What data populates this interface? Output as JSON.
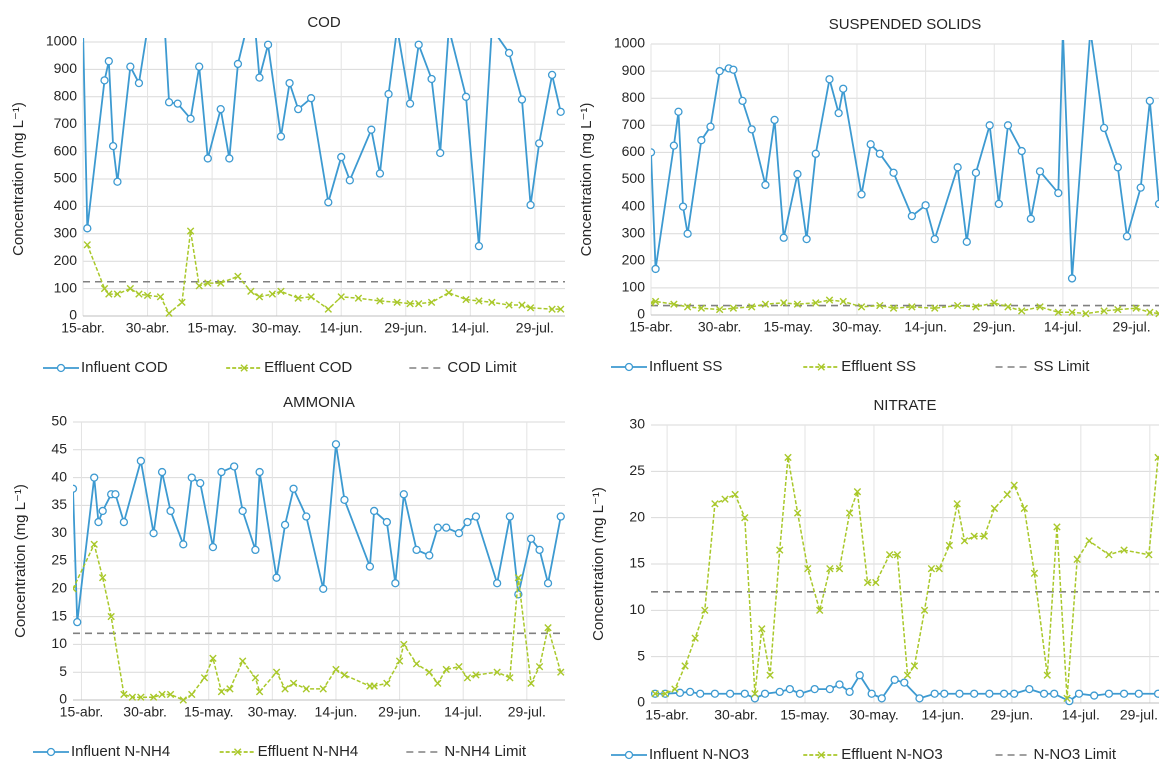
{
  "chart_data": [
    {
      "type": "line",
      "title": "COD",
      "y_label": "Concentration  (mg L⁻¹)",
      "xlim": [
        0,
        112
      ],
      "ylim": [
        0,
        1000
      ],
      "grid": true,
      "xticks": [
        {
          "value": 0,
          "label": "15-abr."
        },
        {
          "value": 15,
          "label": "30-abr."
        },
        {
          "value": 30,
          "label": "15-may."
        },
        {
          "value": 45,
          "label": "30-may."
        },
        {
          "value": 60,
          "label": "14-jun."
        },
        {
          "value": 75,
          "label": "29-jun."
        },
        {
          "value": 90,
          "label": "14-jul."
        },
        {
          "value": 105,
          "label": "29-jul."
        }
      ],
      "yticks": [
        0,
        100,
        200,
        300,
        400,
        500,
        600,
        700,
        800,
        900,
        1000
      ],
      "series": [
        {
          "name": "Influent COD",
          "color": "#3d9ad1",
          "marker": "circle",
          "x": [
            0,
            1,
            5,
            6,
            7,
            8,
            11,
            13,
            15,
            19,
            20,
            22,
            25,
            27,
            29,
            32,
            34,
            36,
            38,
            40,
            41,
            43,
            46,
            48,
            50,
            53,
            57,
            60,
            62,
            67,
            69,
            71,
            73,
            76,
            78,
            81,
            83,
            85,
            89,
            92,
            95,
            99,
            102,
            104,
            106,
            109,
            111
          ],
          "values": [
            1050,
            320,
            860,
            930,
            620,
            490,
            910,
            850,
            1050,
            1050,
            780,
            775,
            720,
            910,
            575,
            755,
            575,
            920,
            1050,
            1050,
            870,
            990,
            655,
            850,
            755,
            795,
            415,
            580,
            495,
            680,
            520,
            810,
            1050,
            775,
            990,
            865,
            595,
            1050,
            800,
            255,
            1050,
            960,
            790,
            405,
            630,
            880,
            745
          ]
        },
        {
          "name": "Effluent COD",
          "color": "#a9c82a",
          "marker": "x",
          "x": [
            1,
            5,
            6,
            8,
            11,
            13,
            15,
            18,
            20,
            23,
            25,
            27,
            29,
            32,
            36,
            39,
            41,
            44,
            46,
            50,
            53,
            57,
            60,
            64,
            69,
            73,
            76,
            78,
            81,
            85,
            89,
            92,
            95,
            99,
            102,
            104,
            109,
            111
          ],
          "values": [
            260,
            100,
            80,
            80,
            100,
            80,
            75,
            70,
            10,
            50,
            310,
            110,
            120,
            120,
            145,
            90,
            70,
            80,
            90,
            65,
            70,
            25,
            70,
            65,
            55,
            50,
            45,
            45,
            50,
            85,
            60,
            55,
            50,
            40,
            40,
            30,
            25,
            25
          ]
        }
      ],
      "limit": {
        "name": "COD Limit",
        "value": 125,
        "color": "#808080"
      }
    },
    {
      "type": "line",
      "title": "SUSPENDED SOLIDS",
      "y_label": "Concentration  (mg L⁻¹)",
      "xlim": [
        0,
        111
      ],
      "ylim": [
        0,
        1000
      ],
      "grid": true,
      "xticks": [
        {
          "value": 0,
          "label": "15-abr."
        },
        {
          "value": 15,
          "label": "30-abr."
        },
        {
          "value": 30,
          "label": "15-may."
        },
        {
          "value": 45,
          "label": "30-may."
        },
        {
          "value": 60,
          "label": "14-jun."
        },
        {
          "value": 75,
          "label": "29-jun."
        },
        {
          "value": 90,
          "label": "14-jul."
        },
        {
          "value": 105,
          "label": "29-jul."
        }
      ],
      "yticks": [
        0,
        100,
        200,
        300,
        400,
        500,
        600,
        700,
        800,
        900,
        1000
      ],
      "series": [
        {
          "name": "Influent SS",
          "color": "#3d9ad1",
          "marker": "circle",
          "x": [
            0,
            1,
            5,
            6,
            7,
            8,
            11,
            13,
            15,
            17,
            18,
            20,
            22,
            25,
            27,
            29,
            32,
            34,
            36,
            39,
            41,
            42,
            46,
            48,
            50,
            53,
            57,
            60,
            62,
            67,
            69,
            71,
            74,
            76,
            78,
            81,
            83,
            85,
            89,
            90,
            92,
            96,
            99,
            102,
            104,
            107,
            109,
            111
          ],
          "values": [
            600,
            170,
            625,
            750,
            400,
            300,
            645,
            695,
            900,
            910,
            905,
            790,
            685,
            480,
            720,
            285,
            520,
            280,
            595,
            870,
            745,
            835,
            445,
            630,
            595,
            525,
            365,
            405,
            280,
            545,
            270,
            525,
            700,
            410,
            700,
            605,
            355,
            530,
            450,
            1050,
            135,
            1050,
            690,
            545,
            290,
            470,
            790,
            410
          ]
        },
        {
          "name": "Effluent SS",
          "color": "#a9c82a",
          "marker": "x",
          "x": [
            0,
            1,
            5,
            8,
            11,
            15,
            18,
            22,
            25,
            29,
            32,
            36,
            39,
            42,
            46,
            50,
            53,
            57,
            62,
            67,
            71,
            75,
            78,
            81,
            85,
            89,
            92,
            95,
            99,
            102,
            106,
            109,
            111
          ],
          "values": [
            45,
            50,
            40,
            30,
            25,
            20,
            25,
            30,
            40,
            45,
            40,
            45,
            55,
            50,
            30,
            35,
            25,
            30,
            25,
            35,
            30,
            45,
            30,
            15,
            30,
            10,
            10,
            5,
            15,
            20,
            25,
            10,
            5
          ]
        }
      ],
      "limit": {
        "name": "SS Limit",
        "value": 35,
        "color": "#808080"
      }
    },
    {
      "type": "line",
      "title": "AMMONIA",
      "y_label": "Concentration  (mg L⁻¹)",
      "xlim": [
        -2,
        114
      ],
      "ylim": [
        0,
        50
      ],
      "grid": true,
      "xticks": [
        {
          "value": 0,
          "label": "15-abr."
        },
        {
          "value": 15,
          "label": "30-abr."
        },
        {
          "value": 30,
          "label": "15-may."
        },
        {
          "value": 45,
          "label": "30-may."
        },
        {
          "value": 60,
          "label": "14-jun."
        },
        {
          "value": 75,
          "label": "29-jun."
        },
        {
          "value": 90,
          "label": "14-jul."
        },
        {
          "value": 105,
          "label": "29-jul."
        }
      ],
      "yticks": [
        0,
        5,
        10,
        15,
        20,
        25,
        30,
        35,
        40,
        45,
        50
      ],
      "series": [
        {
          "name": "Influent N-NH4",
          "color": "#3d9ad1",
          "marker": "circle",
          "x": [
            -2,
            -1,
            3,
            4,
            5,
            7,
            8,
            10,
            14,
            17,
            19,
            21,
            24,
            26,
            28,
            31,
            33,
            36,
            38,
            41,
            42,
            46,
            48,
            50,
            53,
            57,
            60,
            62,
            68,
            69,
            72,
            74,
            76,
            79,
            82,
            84,
            86,
            89,
            91,
            93,
            98,
            101,
            103,
            106,
            108,
            110,
            113
          ],
          "values": [
            38,
            14,
            40,
            32,
            34,
            37,
            37,
            32,
            43,
            30,
            41,
            34,
            28,
            40,
            39,
            27.5,
            41,
            42,
            34,
            27,
            41,
            22,
            31.5,
            38,
            33,
            20,
            46,
            36,
            24,
            34,
            32,
            21,
            37,
            27,
            26,
            31,
            31,
            30,
            32,
            33,
            21,
            33,
            19,
            29,
            27,
            21,
            33
          ]
        },
        {
          "name": "Effluent N-NH4",
          "color": "#a9c82a",
          "marker": "x",
          "x": [
            -2,
            3,
            5,
            7,
            10,
            12,
            14,
            17,
            19,
            21,
            24,
            26,
            29,
            31,
            33,
            35,
            38,
            41,
            42,
            46,
            48,
            50,
            53,
            57,
            60,
            62,
            68,
            69,
            72,
            75,
            76,
            79,
            82,
            84,
            86,
            89,
            91,
            93,
            98,
            101,
            103,
            106,
            108,
            110,
            113
          ],
          "values": [
            20,
            28,
            22,
            15,
            1,
            0.5,
            0.5,
            0.5,
            1,
            1,
            0,
            1,
            4,
            7.5,
            1.5,
            2,
            7,
            4,
            1.5,
            5,
            2,
            3,
            2,
            2,
            5.5,
            4.5,
            2.5,
            2.5,
            3,
            7,
            10,
            6.5,
            5,
            3,
            5.5,
            6,
            4,
            4.5,
            5,
            4,
            22,
            3,
            6,
            13,
            5
          ]
        }
      ],
      "limit": {
        "name": "N-NH4 Limit",
        "value": 12,
        "color": "#808080"
      }
    },
    {
      "type": "line",
      "title": "NITRATE",
      "y_label": "Concentration  (mg L⁻¹)",
      "xlim": [
        -3.5,
        107
      ],
      "ylim": [
        0,
        30
      ],
      "grid": true,
      "xticks": [
        {
          "value": 0,
          "label": "15-abr."
        },
        {
          "value": 15,
          "label": "30-abr."
        },
        {
          "value": 30,
          "label": "15-may."
        },
        {
          "value": 45,
          "label": "30-may."
        },
        {
          "value": 60,
          "label": "14-jun."
        },
        {
          "value": 75,
          "label": "29-jun."
        },
        {
          "value": 90,
          "label": "14-jul."
        },
        {
          "value": 105,
          "label": "29-jul."
        }
      ],
      "yticks": [
        0,
        5,
        10,
        15,
        20,
        25,
        30
      ],
      "series": [
        {
          "name": "Influent N-NO3",
          "color": "#3d9ad1",
          "marker": "circle",
          "x": [
            -2.6,
            -0.4,
            2.8,
            5,
            7.2,
            10.4,
            13.7,
            16.9,
            19.1,
            21.3,
            24.5,
            26.7,
            28.9,
            32.1,
            35.4,
            37.5,
            39.7,
            41.9,
            44.5,
            46.7,
            49.5,
            51.6,
            54.9,
            58.2,
            60.3,
            63.6,
            66.8,
            70.1,
            73.3,
            75.5,
            78.8,
            82,
            84.2,
            87.5,
            89.6,
            92.9,
            96.1,
            99.4,
            102.6,
            106.8
          ],
          "values": [
            1,
            1,
            1.1,
            1.2,
            1,
            1,
            1,
            1,
            0.5,
            1,
            1.2,
            1.5,
            1,
            1.5,
            1.5,
            2,
            1.2,
            3,
            1,
            0.5,
            2.5,
            2.2,
            0.5,
            1,
            1,
            1,
            1,
            1,
            1,
            1,
            1.5,
            1,
            1,
            0.2,
            1,
            0.8,
            1,
            1,
            1,
            1
          ]
        },
        {
          "name": "Effluent N-NO3",
          "color": "#a9c82a",
          "marker": "x",
          "x": [
            -2.6,
            -0.4,
            1.7,
            3.9,
            6.1,
            8.2,
            10.4,
            12.6,
            14.8,
            16.9,
            19.1,
            20.6,
            22.4,
            24.5,
            26.3,
            28.4,
            30.6,
            33.2,
            35.4,
            37.5,
            39.7,
            41.4,
            43.6,
            45.4,
            48.4,
            50.1,
            52.3,
            53.8,
            56,
            57.5,
            59.2,
            61.4,
            63.1,
            64.7,
            66.8,
            69,
            71.2,
            74,
            75.5,
            77.7,
            79.9,
            82.7,
            84.8,
            87,
            89.2,
            91.8,
            96.1,
            99.4,
            104.8,
            106.8
          ],
          "values": [
            1,
            1,
            1.5,
            4,
            7,
            10,
            21.5,
            22,
            22.5,
            20,
            1,
            8,
            3,
            16.5,
            26.5,
            20.5,
            14.5,
            10,
            14.5,
            14.5,
            20.5,
            22.8,
            13,
            13,
            16,
            16,
            3,
            4,
            10,
            14.5,
            14.5,
            17,
            21.5,
            17.5,
            18,
            18,
            21,
            22.5,
            23.5,
            21,
            14,
            3,
            19,
            0.5,
            15.5,
            17.5,
            16,
            16.5,
            16,
            26.5
          ]
        }
      ],
      "limit": {
        "name": "N-NO3 Limit",
        "value": 12,
        "color": "#808080"
      }
    }
  ]
}
